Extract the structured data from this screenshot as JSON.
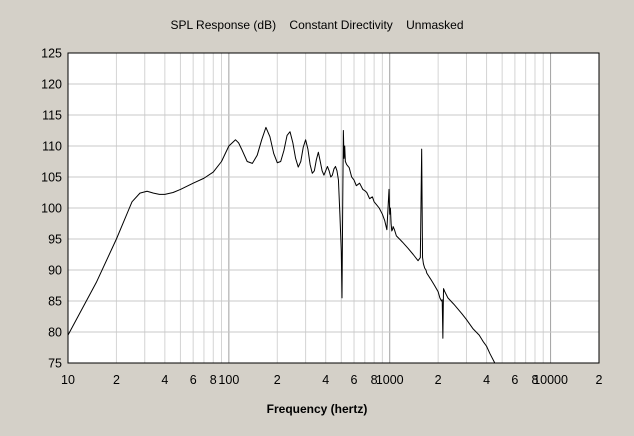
{
  "chart_data": {
    "type": "line",
    "title": "SPL Response (dB)    Constant Directivity    Unmasked",
    "xlabel": "Frequency (hertz)",
    "ylabel": "",
    "x_scale": "log",
    "xlim": [
      10,
      20000
    ],
    "ylim": [
      75,
      125
    ],
    "grid": true,
    "x_tick_labels": [
      {
        "value": 10,
        "label": "10"
      },
      {
        "value": 20,
        "label": "2"
      },
      {
        "value": 40,
        "label": "4"
      },
      {
        "value": 60,
        "label": "6"
      },
      {
        "value": 80,
        "label": "8"
      },
      {
        "value": 100,
        "label": "100"
      },
      {
        "value": 200,
        "label": "2"
      },
      {
        "value": 400,
        "label": "4"
      },
      {
        "value": 600,
        "label": "6"
      },
      {
        "value": 800,
        "label": "8"
      },
      {
        "value": 1000,
        "label": "1000"
      },
      {
        "value": 2000,
        "label": "2"
      },
      {
        "value": 4000,
        "label": "4"
      },
      {
        "value": 6000,
        "label": "6"
      },
      {
        "value": 8000,
        "label": "8"
      },
      {
        "value": 10000,
        "label": "10000"
      },
      {
        "value": 20000,
        "label": "2"
      }
    ],
    "y_ticks": [
      75,
      80,
      85,
      90,
      95,
      100,
      105,
      110,
      115,
      120,
      125
    ],
    "series": [
      {
        "color": "#000000",
        "x": [
          10,
          15,
          20,
          25,
          28,
          31,
          34,
          37,
          40,
          45,
          50,
          60,
          70,
          80,
          90,
          100,
          110,
          115,
          120,
          130,
          140,
          150,
          160,
          170,
          180,
          190,
          200,
          210,
          220,
          230,
          240,
          250,
          260,
          270,
          280,
          290,
          300,
          310,
          320,
          330,
          340,
          350,
          360,
          370,
          380,
          390,
          400,
          410,
          420,
          430,
          440,
          450,
          460,
          470,
          480,
          490,
          500,
          505,
          510,
          515,
          520,
          525,
          530,
          540,
          560,
          580,
          600,
          620,
          650,
          680,
          700,
          720,
          750,
          780,
          800,
          830,
          860,
          900,
          930,
          960,
          990,
          1000,
          1010,
          1020,
          1030,
          1040,
          1050,
          1070,
          1100,
          1150,
          1200,
          1300,
          1400,
          1500,
          1550,
          1580,
          1590,
          1600,
          1610,
          1620,
          1650,
          1680,
          1700,
          1800,
          1900,
          2000,
          2050,
          2100,
          2120,
          2140,
          2160,
          2200,
          2300,
          2500,
          2800,
          3000,
          3300,
          3600,
          3800,
          4000,
          4200,
          4500
        ],
        "values": [
          79.5,
          88,
          95,
          101,
          102.4,
          102.7,
          102.4,
          102.2,
          102.2,
          102.5,
          103,
          104,
          104.8,
          105.8,
          107.5,
          110,
          111,
          110.5,
          109.5,
          107.5,
          107.2,
          108.5,
          111,
          113,
          111.5,
          108.8,
          107.3,
          107.5,
          109.3,
          111.7,
          112.3,
          110.5,
          108,
          106.6,
          107.5,
          109.8,
          111,
          109.5,
          107,
          105.6,
          106,
          107.8,
          109,
          107.5,
          106,
          105.3,
          106,
          106.7,
          106,
          105,
          105.3,
          106.3,
          106.7,
          106,
          104.5,
          99,
          93,
          85.5,
          100,
          112.5,
          108,
          110,
          107.5,
          107,
          106.5,
          105,
          104.5,
          103.6,
          104,
          103,
          102.8,
          102.5,
          101.5,
          101.8,
          101,
          100.5,
          100,
          99,
          98,
          96.5,
          103,
          99,
          100,
          97.5,
          96.3,
          96.5,
          97,
          96.5,
          95.5,
          95,
          94.5,
          93.5,
          92.5,
          91.5,
          92,
          109.5,
          100.5,
          92,
          91.5,
          91,
          90.3,
          90,
          89.5,
          88.5,
          87.5,
          86.5,
          85.5,
          85,
          85.2,
          79,
          87,
          86.5,
          85.5,
          84.5,
          83,
          82,
          80.5,
          79.5,
          78.5,
          77.7,
          76.5,
          75
        ]
      }
    ]
  }
}
